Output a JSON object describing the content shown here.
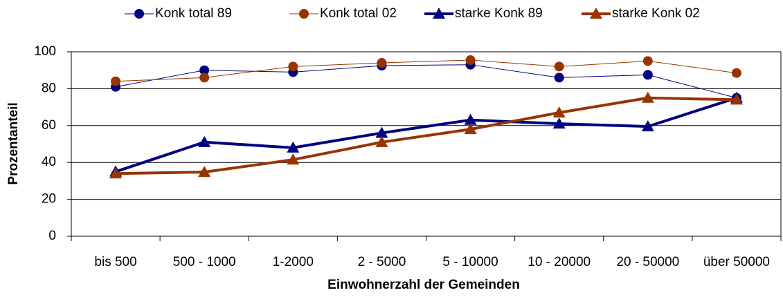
{
  "chart_data": {
    "type": "line",
    "x_label": "Einwohnerzahl der Gemeinden",
    "y_label": "Prozentanteil",
    "categories": [
      "bis 500",
      "500 - 1000",
      "1-2000",
      "2 - 5000",
      "5 - 10000",
      "10 - 20000",
      "20 - 50000",
      "über 50000"
    ],
    "series": [
      {
        "name": "Konk total 89",
        "color": "#000080",
        "marker": "circle",
        "width": 1,
        "values": [
          81,
          90,
          89,
          92.5,
          93,
          86,
          87.5,
          75
        ]
      },
      {
        "name": "Konk total 02",
        "color": "#993300",
        "marker": "circle",
        "width": 1,
        "values": [
          84,
          86,
          92,
          94,
          95.5,
          92,
          95,
          88.5
        ]
      },
      {
        "name": "starke Konk 89",
        "color": "#000080",
        "marker": "triangle",
        "width": 4,
        "values": [
          35,
          51,
          48,
          56,
          63,
          61,
          59.5,
          75
        ]
      },
      {
        "name": "starke Konk 02",
        "color": "#993300",
        "marker": "triangle",
        "width": 4,
        "values": [
          34,
          34.8,
          41.5,
          51,
          58,
          67,
          75,
          74
        ]
      }
    ],
    "ylim": [
      0,
      100
    ],
    "yticks": [
      0,
      20,
      40,
      60,
      80,
      100
    ],
    "grid": true,
    "legend": "top"
  }
}
